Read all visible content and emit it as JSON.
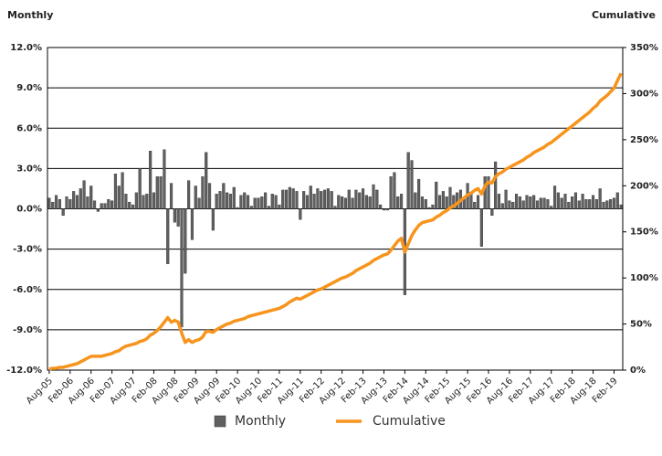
{
  "chart_data": {
    "type": "combo",
    "y_label": "Monthly",
    "y2_label": "Cumulative",
    "categories": [
      "Aug-05",
      null,
      null,
      null,
      null,
      null,
      "Feb-06",
      null,
      null,
      null,
      null,
      null,
      "Aug-06",
      null,
      null,
      null,
      null,
      null,
      "Feb-07",
      null,
      null,
      null,
      null,
      null,
      "Aug-07",
      null,
      null,
      null,
      null,
      null,
      "Feb-08",
      null,
      null,
      null,
      null,
      null,
      "Aug-08",
      null,
      null,
      null,
      null,
      null,
      "Feb-09",
      null,
      null,
      null,
      null,
      null,
      "Aug-09",
      null,
      null,
      null,
      null,
      null,
      "Feb-10",
      null,
      null,
      null,
      null,
      null,
      "Aug-10",
      null,
      null,
      null,
      null,
      null,
      "Feb-11",
      null,
      null,
      null,
      null,
      null,
      "Aug-11",
      null,
      null,
      null,
      null,
      null,
      "Feb-12",
      null,
      null,
      null,
      null,
      null,
      "Aug-12",
      null,
      null,
      null,
      null,
      null,
      "Feb-13",
      null,
      null,
      null,
      null,
      null,
      "Aug-13",
      null,
      null,
      null,
      null,
      null,
      "Feb-14",
      null,
      null,
      null,
      null,
      null,
      "Aug-14",
      null,
      null,
      null,
      null,
      null,
      "Feb-15",
      null,
      null,
      null,
      null,
      null,
      "Aug-15",
      null,
      null,
      null,
      null,
      null,
      "Feb-16",
      null,
      null,
      null,
      null,
      null,
      "Aug-16",
      null,
      null,
      null,
      null,
      null,
      "Feb-17",
      null,
      null,
      null,
      null,
      null,
      "Aug-17",
      null,
      null,
      null,
      null,
      null,
      "Feb-18",
      null,
      null,
      null,
      null,
      null,
      "Aug-18",
      null,
      null,
      null,
      null,
      null,
      "Feb-19",
      null,
      null
    ],
    "series": [
      {
        "name": "Monthly",
        "type": "bar",
        "axis": "y",
        "color": "#606060",
        "values": [
          0.8,
          0.5,
          1.0,
          0.7,
          -0.5,
          0.9,
          0.7,
          1.3,
          1.0,
          1.5,
          2.1,
          0.9,
          1.7,
          0.6,
          -0.2,
          0.4,
          0.4,
          0.7,
          0.6,
          2.6,
          1.7,
          2.7,
          1.1,
          0.5,
          0.3,
          1.2,
          3.0,
          1.0,
          1.1,
          4.3,
          1.2,
          2.4,
          2.4,
          4.4,
          -4.1,
          1.9,
          -1.0,
          -1.3,
          -8.8,
          -4.8,
          2.1,
          -2.3,
          1.7,
          0.8,
          2.4,
          4.2,
          1.9,
          -1.6,
          1.1,
          1.3,
          1.9,
          1.2,
          1.1,
          1.6,
          0.1,
          1.0,
          1.2,
          1.0,
          0.2,
          0.8,
          0.8,
          0.9,
          1.2,
          0.2,
          1.1,
          1.0,
          0.3,
          1.4,
          1.4,
          1.6,
          1.5,
          1.3,
          -0.8,
          1.3,
          1.0,
          1.7,
          1.1,
          1.5,
          1.3,
          1.4,
          1.5,
          1.3,
          0.2,
          1.0,
          0.9,
          0.8,
          1.4,
          0.8,
          1.4,
          1.2,
          1.5,
          1.0,
          0.9,
          1.8,
          1.4,
          0.3,
          -0.1,
          -0.1,
          2.4,
          2.7,
          0.9,
          1.1,
          -6.4,
          4.2,
          3.6,
          1.2,
          2.2,
          0.9,
          0.7,
          0.1,
          0.3,
          2.0,
          1.0,
          1.3,
          0.9,
          1.6,
          1.0,
          1.2,
          1.4,
          0.7,
          1.9,
          1.1,
          0.5,
          1.0,
          -2.8,
          2.4,
          2.4,
          -0.5,
          3.5,
          1.1,
          0.4,
          1.4,
          0.6,
          0.5,
          1.1,
          0.9,
          0.6,
          1.0,
          0.9,
          1.0,
          0.6,
          0.8,
          0.8,
          0.7,
          0.2,
          1.7,
          1.2,
          0.8,
          1.1,
          0.5,
          0.9,
          1.2,
          0.6,
          1.1,
          0.7,
          0.7,
          1.0,
          0.7,
          1.5,
          0.5,
          0.6,
          0.7,
          0.8,
          1.2,
          0.3
        ]
      },
      {
        "name": "Cumulative",
        "type": "line",
        "axis": "y2",
        "color": "#f7941d",
        "values": [
          1,
          2,
          2,
          3,
          3,
          4,
          5,
          6,
          7,
          9,
          11,
          13,
          15,
          15,
          15,
          15,
          16,
          17,
          18,
          20,
          21,
          24,
          26,
          27,
          28,
          29,
          31,
          32,
          34,
          38,
          40,
          43,
          47,
          52,
          57,
          52,
          54,
          52,
          40,
          30,
          33,
          30,
          32,
          33,
          36,
          42,
          42,
          41,
          44,
          46,
          48,
          50,
          51,
          53,
          54,
          55,
          56,
          58,
          59,
          60,
          61,
          62,
          63,
          64,
          65,
          66,
          67,
          69,
          71,
          74,
          76,
          78,
          77,
          79,
          81,
          83,
          85,
          87,
          88,
          90,
          92,
          94,
          96,
          98,
          100,
          101,
          103,
          105,
          108,
          110,
          112,
          114,
          116,
          119,
          121,
          123,
          125,
          126,
          130,
          135,
          140,
          143,
          128,
          137,
          146,
          152,
          157,
          160,
          161,
          162,
          163,
          166,
          168,
          171,
          173,
          176,
          178,
          181,
          184,
          187,
          190,
          192,
          195,
          197,
          191,
          200,
          204,
          203,
          210,
          213,
          215,
          218,
          220,
          222,
          224,
          226,
          228,
          231,
          233,
          236,
          238,
          240,
          242,
          245,
          247,
          250,
          253,
          256,
          259,
          262,
          265,
          268,
          271,
          274,
          277,
          280,
          284,
          287,
          292,
          295,
          298,
          302,
          306,
          314,
          322
        ]
      }
    ],
    "ylim": [
      -12,
      12
    ],
    "yticks": [
      {
        "value": 12,
        "label": "12.0%"
      },
      {
        "value": 9,
        "label": "9.0%"
      },
      {
        "value": 6,
        "label": "6.0%"
      },
      {
        "value": 3,
        "label": "3.0%"
      },
      {
        "value": 0,
        "label": "0.0%"
      },
      {
        "value": -3,
        "label": "-3.0%"
      },
      {
        "value": -6,
        "label": "-6.0%"
      },
      {
        "value": -9,
        "label": "-9.0%"
      },
      {
        "value": -12,
        "label": "-12.0%"
      }
    ],
    "y2lim": [
      0,
      350
    ],
    "y2ticks": [
      {
        "value": 350,
        "label": "350%"
      },
      {
        "value": 300,
        "label": "300%"
      },
      {
        "value": 250,
        "label": "250%"
      },
      {
        "value": 200,
        "label": "200%"
      },
      {
        "value": 150,
        "label": "150%"
      },
      {
        "value": 100,
        "label": "100%"
      },
      {
        "value": 50,
        "label": "50%"
      },
      {
        "value": 0,
        "label": "0%"
      }
    ],
    "grid": true,
    "legend": "bottom"
  }
}
